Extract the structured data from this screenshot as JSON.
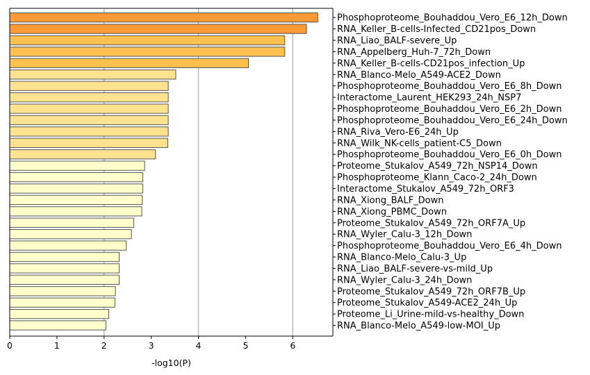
{
  "chart_data": {
    "type": "bar",
    "orientation": "horizontal",
    "title": "",
    "xlabel": "-log10(P)",
    "ylabel": "",
    "xlim": [
      0,
      6.85
    ],
    "xticks": [
      0,
      1,
      2,
      3,
      4,
      5,
      6
    ],
    "grid": "vertical lines at 2, 4, 6",
    "categories": [
      "Phosphoproteome_Bouhaddou_Vero_E6_12h_Down",
      "RNA_Keller_B-cells-Infected_CD21pos_Down",
      "RNA_Liao_BALF-severe_Up",
      "RNA_Appelberg_Huh-7_72h_Down",
      "RNA_Keller_B-cells-CD21pos_infection_Up",
      "RNA_Blanco-Melo_A549-ACE2_Down",
      "Phosphoproteome_Bouhaddou_Vero_E6_8h_Down",
      "Interactome_Laurent_HEK293_24h_NSP7",
      "Phosphoproteome_Bouhaddou_Vero_E6_2h_Down",
      "Phosphoproteome_Bouhaddou_Vero_E6_24h_Down",
      "RNA_Riva_Vero-E6_24h_Up",
      "RNA_Wilk_NK-cells_patient-C5_Down",
      "Phosphoproteome_Bouhaddou_Vero_E6_0h_Down",
      "Proteome_Stukalov_A549_72h_NSP14_Down",
      "Phosphoproteome_Klann_Caco-2_24h_Down",
      "Interactome_Stukalov_A549_72h_ORF3",
      "RNA_Xiong_BALF_Down",
      "RNA_Xiong_PBMC_Down",
      "Proteome_Stukalov_A549_72h_ORF7A_Up",
      "RNA_Wyler_Calu-3_12h_Down",
      "Phosphoproteome_Bouhaddou_Vero_E6_4h_Down",
      "RNA_Blanco-Melo_Calu-3_Up",
      "RNA_Liao_BALF-severe-vs-mild_Up",
      "RNA_Wyler_Calu-3_24h_Down",
      "Proteome_Stukalov_A549_72h_ORF7B_Up",
      "Proteome_Stukalov_A549-ACE2_24h_Up",
      "Proteome_Li_Urine-mild-vs-healthy_Down",
      "RNA_Blanco-Melo_A549-low-MOI_Up"
    ],
    "values": [
      6.53,
      6.29,
      5.83,
      5.83,
      5.06,
      3.52,
      3.36,
      3.36,
      3.36,
      3.36,
      3.36,
      3.35,
      3.09,
      2.86,
      2.82,
      2.82,
      2.81,
      2.8,
      2.63,
      2.58,
      2.47,
      2.32,
      2.32,
      2.32,
      2.24,
      2.23,
      2.1,
      2.04
    ],
    "colors": [
      "#fd9a35",
      "#fd9a35",
      "#fec04f",
      "#fec04f",
      "#fec04f",
      "#fee28f",
      "#fee28f",
      "#fee28f",
      "#fee28f",
      "#fee28f",
      "#fee28f",
      "#fee28f",
      "#fee28f",
      "#ffffcc",
      "#ffffcc",
      "#ffffcc",
      "#ffffcc",
      "#ffffcc",
      "#ffffcc",
      "#ffffcc",
      "#ffffcc",
      "#ffffcc",
      "#ffffcc",
      "#ffffcc",
      "#ffffcc",
      "#ffffcc",
      "#ffffcc",
      "#ffffcc"
    ],
    "bar_edge_color": "#555555",
    "grid_color": "#b0b0b0"
  }
}
